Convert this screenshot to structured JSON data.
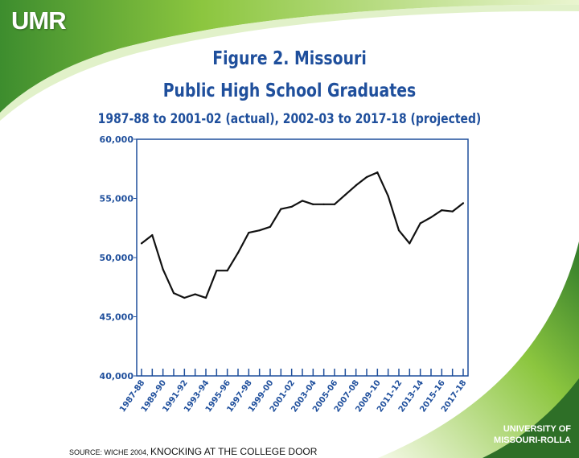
{
  "logo": "UMR",
  "university": {
    "line1": "UNIVERSITY OF",
    "line2": "MISSOURI-ROLLA"
  },
  "source": {
    "prefix": "SOURCE: WICHE 2004,",
    "title": "KNOCKING AT THE COLLEGE DOOR"
  },
  "colors": {
    "title": "#1f4f9c",
    "axis": "#1f4f9c",
    "line": "#111111",
    "green": "#8cc63f"
  },
  "chart_data": {
    "type": "line",
    "title": "Figure 2.  Missouri",
    "subtitle": "Public High School Graduates",
    "subtitle2": "1987-88 to 2001-02 (actual), 2002-03 to 2017-18 (projected)",
    "xlabel": "",
    "ylabel": "",
    "ylim": [
      40000,
      60000
    ],
    "yticks": [
      "60,000",
      "55,000",
      "50,000",
      "45,000",
      "40,000"
    ],
    "ytick_values": [
      60000,
      55000,
      50000,
      45000,
      40000
    ],
    "x": [
      "1987-88",
      "1988-89",
      "1989-90",
      "1990-91",
      "1991-92",
      "1992-93",
      "1993-94",
      "1994-95",
      "1995-96",
      "1996-97",
      "1997-98",
      "1998-99",
      "1999-00",
      "2000-01",
      "2001-02",
      "2002-03",
      "2003-04",
      "2004-05",
      "2005-06",
      "2006-07",
      "2007-08",
      "2008-09",
      "2009-10",
      "2010-11",
      "2011-12",
      "2012-13",
      "2013-14",
      "2014-15",
      "2015-16",
      "2016-17",
      "2017-18"
    ],
    "xtick_labels": [
      "1987-88",
      "1989-90",
      "1991-92",
      "1993-94",
      "1995-96",
      "1997-98",
      "1999-00",
      "2001-02",
      "2003-04",
      "2005-06",
      "2007-08",
      "2009-10",
      "2011-12",
      "2013-14",
      "2015-16",
      "2017-18"
    ],
    "values": [
      51200,
      51900,
      49000,
      47000,
      46600,
      46900,
      46600,
      48900,
      48900,
      50400,
      52100,
      52300,
      52600,
      54100,
      54300,
      54800,
      54500,
      54500,
      54500,
      55300,
      56100,
      56800,
      57200,
      55200,
      52300,
      51200,
      52900,
      53400,
      54000,
      53900,
      54600
    ],
    "grid": false,
    "legend": "none"
  }
}
